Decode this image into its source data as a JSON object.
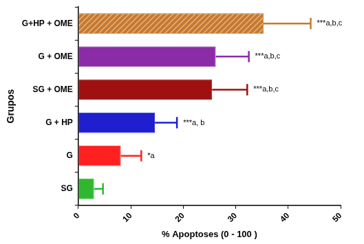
{
  "chart_data": {
    "type": "bar",
    "orientation": "horizontal",
    "x_label": "% Apoptoses (0 - 100 )",
    "y_label": "Grupos",
    "categories": [
      "G+HP + OME",
      "G + OME",
      "SG + OME",
      "G + HP",
      "G",
      "SG"
    ],
    "values": [
      35.3,
      26.2,
      25.5,
      14.6,
      8.1,
      3.0
    ],
    "errors": [
      9.0,
      6.3,
      6.7,
      4.2,
      3.9,
      1.7
    ],
    "annotations": [
      "***a,b,c",
      "***a,b,c",
      "***a,b,c",
      "***a, b",
      "*a",
      null
    ],
    "colors": [
      "#c8792c",
      "#8b2ba6",
      "#a01010",
      "#1f1fd0",
      "#ff2020",
      "#2fb82f"
    ],
    "xlim": [
      0,
      50
    ],
    "xticks": [
      0,
      10,
      20,
      30,
      40,
      50
    ],
    "grid": false
  }
}
